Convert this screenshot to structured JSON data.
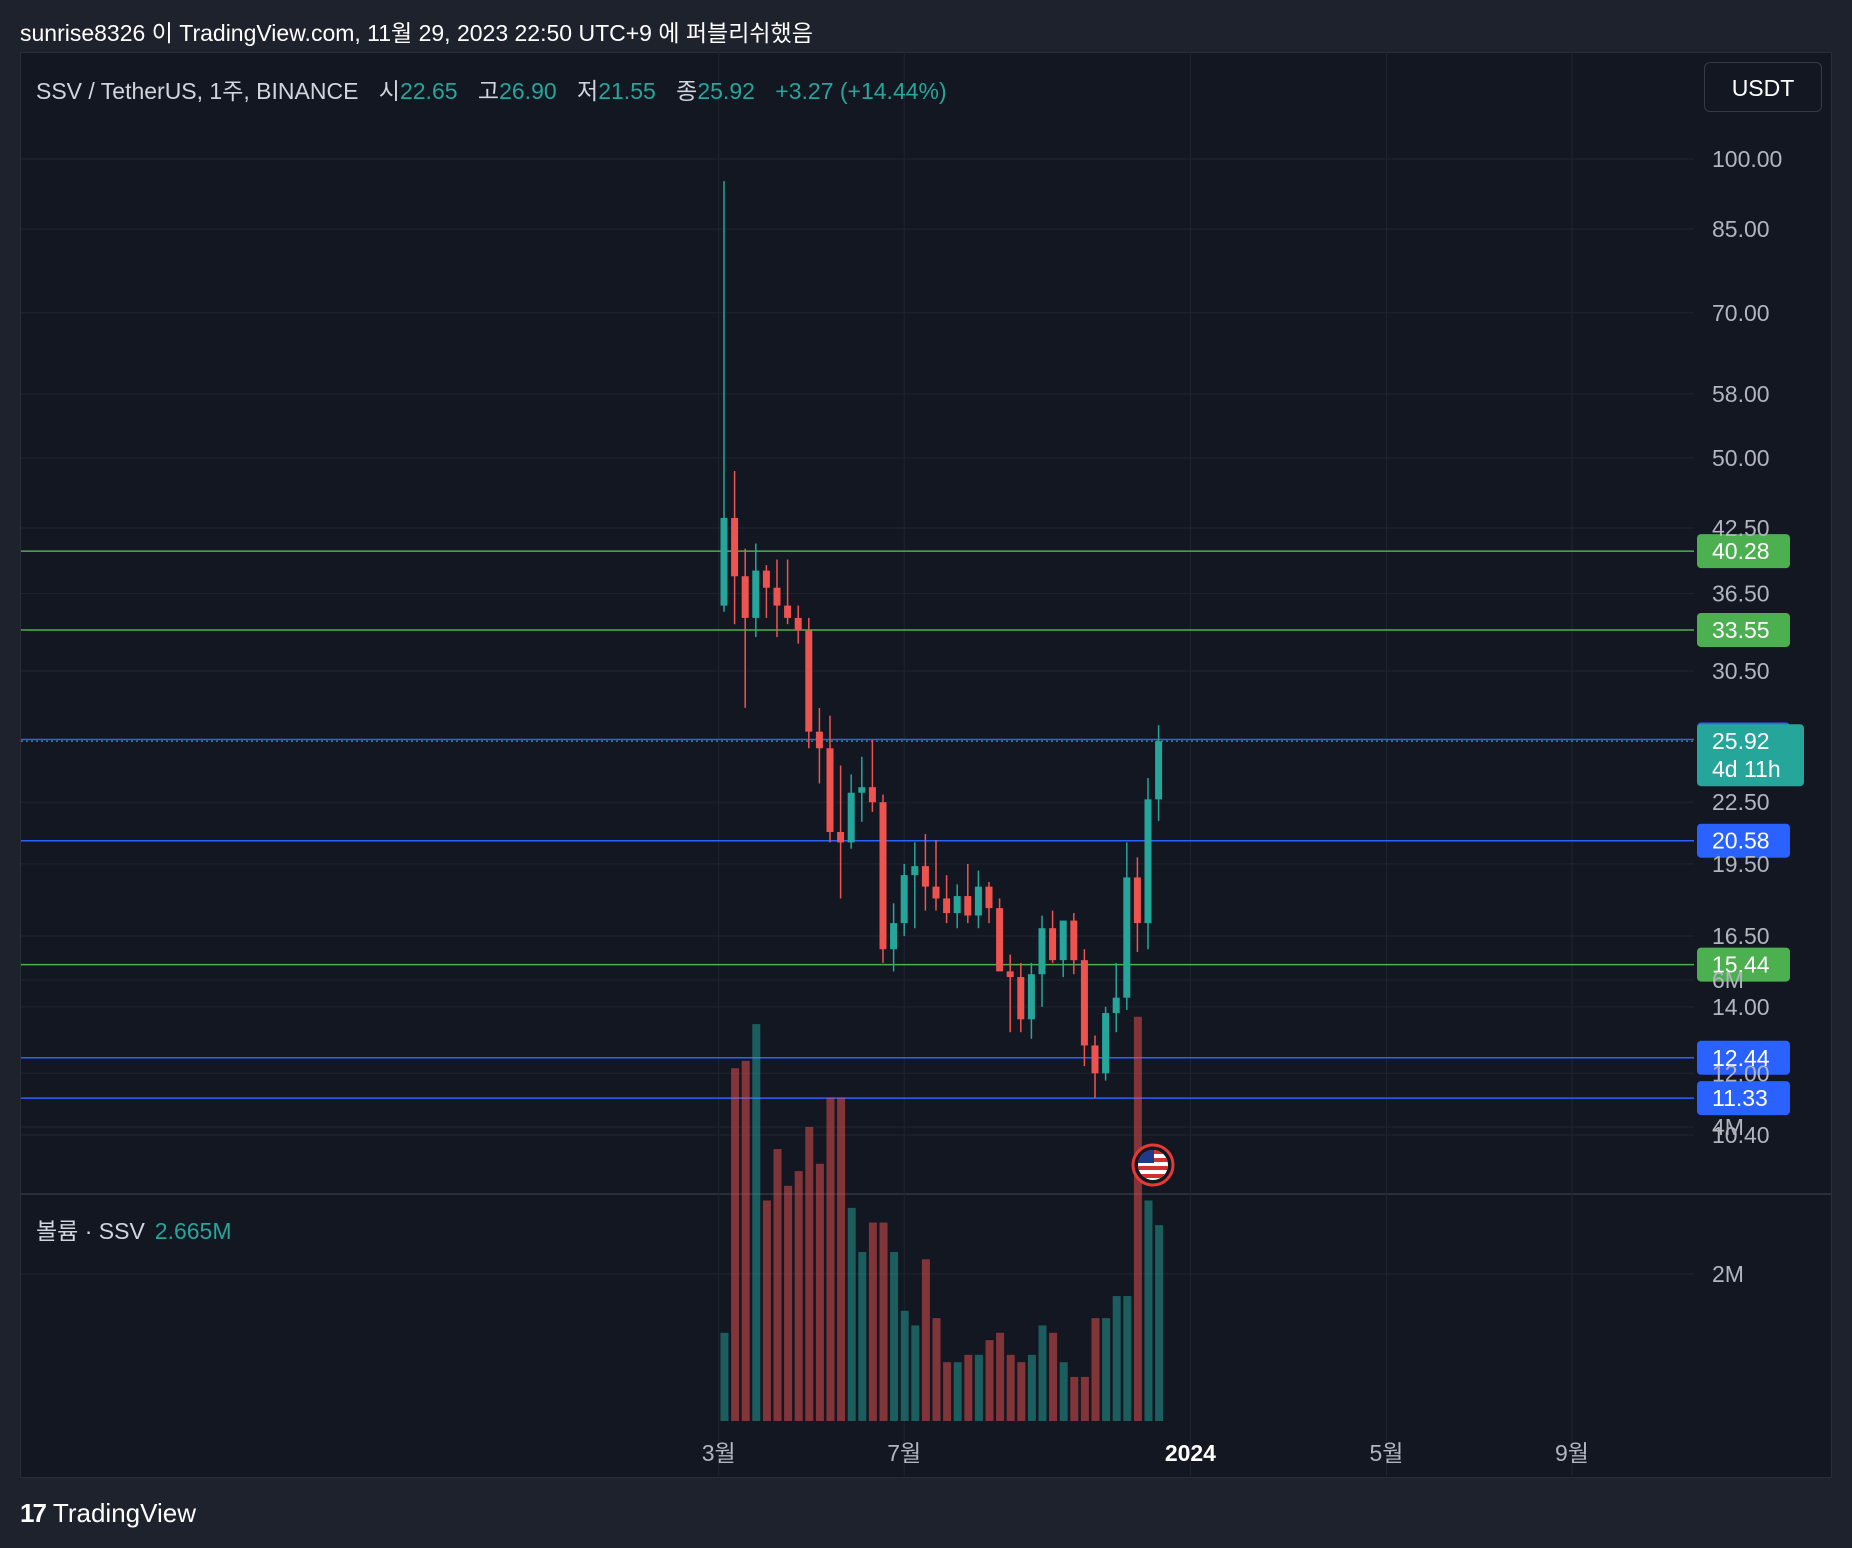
{
  "header": {
    "attribution": "sunrise8326 이 TradingView.com, 11월 29, 2023 22:50 UTC+9 에 퍼블리쉬했음"
  },
  "legend": {
    "symbol": "SSV / TetherUS, 1주, BINANCE",
    "open_label": "시",
    "open": "22.65",
    "high_label": "고",
    "high": "26.90",
    "low_label": "저",
    "low": "21.55",
    "close_label": "종",
    "close": "25.92",
    "change": "+3.27 (+14.44%)"
  },
  "currency_button": "USDT",
  "volume_legend": {
    "label": "볼륨 · SSV",
    "value": "2.665M"
  },
  "brand": "TradingView",
  "colors": {
    "up": "#26a69a",
    "down": "#ef5350",
    "green_level": "#4caf50",
    "blue_level": "#2962ff",
    "background": "#131722"
  },
  "chart_data": {
    "type": "candlestick",
    "y_scale": "log",
    "y_ticks": [
      "100.00",
      "85.00",
      "70.00",
      "58.00",
      "50.00",
      "42.50",
      "36.50",
      "30.50",
      "22.50",
      "19.50",
      "16.50",
      "14.00",
      "12.00",
      "10.40"
    ],
    "x_ticks": [
      {
        "label": "3월",
        "bold": false,
        "t": -0.5
      },
      {
        "label": "7월",
        "bold": false,
        "t": 17
      },
      {
        "label": "2024",
        "bold": true,
        "t": 44
      },
      {
        "label": "5월",
        "bold": false,
        "t": 62.5
      },
      {
        "label": "9월",
        "bold": false,
        "t": 80
      }
    ],
    "horizontal_levels": [
      {
        "value": 40.28,
        "label": "40.28",
        "kind": "green"
      },
      {
        "value": 33.55,
        "label": "33.55",
        "kind": "green"
      },
      {
        "value": 26.02,
        "label": "26.02",
        "kind": "blue"
      },
      {
        "value": 20.58,
        "label": "20.58",
        "kind": "blue"
      },
      {
        "value": 15.44,
        "label": "15.44",
        "kind": "green"
      },
      {
        "value": 12.44,
        "label": "12.44",
        "kind": "blue"
      },
      {
        "value": 11.33,
        "label": "11.33",
        "kind": "blue"
      }
    ],
    "last_price": {
      "value": 25.92,
      "label": "25.92",
      "countdown": "4d 11h"
    },
    "volume_ticks": [
      "6M",
      "4M",
      "2M"
    ],
    "candles": [
      {
        "o": 35.5,
        "h": 95.0,
        "l": 35.0,
        "c": 43.5,
        "v": 1.2
      },
      {
        "o": 43.5,
        "h": 48.5,
        "l": 34.0,
        "c": 38.0,
        "v": 4.8
      },
      {
        "o": 38.0,
        "h": 40.5,
        "l": 28.0,
        "c": 34.5,
        "v": 4.9
      },
      {
        "o": 34.5,
        "h": 41.0,
        "l": 33.0,
        "c": 38.5,
        "v": 5.4
      },
      {
        "o": 38.5,
        "h": 39.0,
        "l": 34.5,
        "c": 37.0,
        "v": 3.0
      },
      {
        "o": 37.0,
        "h": 39.5,
        "l": 33.0,
        "c": 35.5,
        "v": 3.7
      },
      {
        "o": 35.5,
        "h": 39.5,
        "l": 34.0,
        "c": 34.5,
        "v": 3.2
      },
      {
        "o": 34.5,
        "h": 35.5,
        "l": 32.5,
        "c": 33.5,
        "v": 3.4
      },
      {
        "o": 33.5,
        "h": 34.5,
        "l": 25.5,
        "c": 26.5,
        "v": 4.0
      },
      {
        "o": 26.5,
        "h": 28.0,
        "l": 23.5,
        "c": 25.5,
        "v": 3.5
      },
      {
        "o": 25.5,
        "h": 27.5,
        "l": 20.5,
        "c": 21.0,
        "v": 4.4
      },
      {
        "o": 21.0,
        "h": 24.5,
        "l": 18.0,
        "c": 20.5,
        "v": 4.4
      },
      {
        "o": 20.5,
        "h": 24.0,
        "l": 20.2,
        "c": 23.0,
        "v": 2.9
      },
      {
        "o": 23.0,
        "h": 25.0,
        "l": 21.5,
        "c": 23.3,
        "v": 2.3
      },
      {
        "o": 23.3,
        "h": 26.0,
        "l": 22.0,
        "c": 22.5,
        "v": 2.7
      },
      {
        "o": 22.5,
        "h": 22.9,
        "l": 15.5,
        "c": 16.0,
        "v": 2.7
      },
      {
        "o": 16.0,
        "h": 17.8,
        "l": 15.2,
        "c": 17.0,
        "v": 2.3
      },
      {
        "o": 17.0,
        "h": 19.5,
        "l": 16.5,
        "c": 19.0,
        "v": 1.5
      },
      {
        "o": 19.0,
        "h": 20.5,
        "l": 16.8,
        "c": 19.4,
        "v": 1.3
      },
      {
        "o": 19.4,
        "h": 20.9,
        "l": 17.5,
        "c": 18.5,
        "v": 2.2
      },
      {
        "o": 18.5,
        "h": 20.6,
        "l": 17.5,
        "c": 18.0,
        "v": 1.4
      },
      {
        "o": 18.0,
        "h": 19.0,
        "l": 17.0,
        "c": 17.4,
        "v": 0.8
      },
      {
        "o": 17.4,
        "h": 18.6,
        "l": 16.8,
        "c": 18.1,
        "v": 0.8
      },
      {
        "o": 18.1,
        "h": 19.5,
        "l": 17.0,
        "c": 17.3,
        "v": 0.9
      },
      {
        "o": 17.3,
        "h": 19.2,
        "l": 16.8,
        "c": 18.5,
        "v": 0.9
      },
      {
        "o": 18.5,
        "h": 18.7,
        "l": 17.0,
        "c": 17.6,
        "v": 1.1
      },
      {
        "o": 17.6,
        "h": 18.0,
        "l": 15.3,
        "c": 15.2,
        "v": 1.2
      },
      {
        "o": 15.2,
        "h": 15.8,
        "l": 13.2,
        "c": 15.0,
        "v": 0.9
      },
      {
        "o": 15.0,
        "h": 15.5,
        "l": 13.2,
        "c": 13.6,
        "v": 0.8
      },
      {
        "o": 13.6,
        "h": 15.5,
        "l": 13.0,
        "c": 15.1,
        "v": 0.9
      },
      {
        "o": 15.1,
        "h": 17.3,
        "l": 14.0,
        "c": 16.8,
        "v": 1.3
      },
      {
        "o": 16.8,
        "h": 17.5,
        "l": 15.5,
        "c": 15.6,
        "v": 1.2
      },
      {
        "o": 15.6,
        "h": 17.0,
        "l": 15.0,
        "c": 17.1,
        "v": 0.8
      },
      {
        "o": 17.1,
        "h": 17.4,
        "l": 15.1,
        "c": 15.6,
        "v": 0.6
      },
      {
        "o": 15.6,
        "h": 16.0,
        "l": 12.2,
        "c": 12.8,
        "v": 0.6
      },
      {
        "o": 12.8,
        "h": 13.1,
        "l": 11.33,
        "c": 12.0,
        "v": 1.4
      },
      {
        "o": 12.0,
        "h": 14.0,
        "l": 11.8,
        "c": 13.8,
        "v": 1.4
      },
      {
        "o": 13.8,
        "h": 15.5,
        "l": 13.2,
        "c": 14.3,
        "v": 1.7
      },
      {
        "o": 14.3,
        "h": 20.5,
        "l": 13.9,
        "c": 18.9,
        "v": 1.7
      },
      {
        "o": 18.9,
        "h": 19.8,
        "l": 15.9,
        "c": 17.0,
        "v": 5.5
      },
      {
        "o": 17.0,
        "h": 23.8,
        "l": 16.0,
        "c": 22.65,
        "v": 3.0
      },
      {
        "o": 22.65,
        "h": 26.9,
        "l": 21.55,
        "c": 25.92,
        "v": 2.665
      }
    ]
  }
}
